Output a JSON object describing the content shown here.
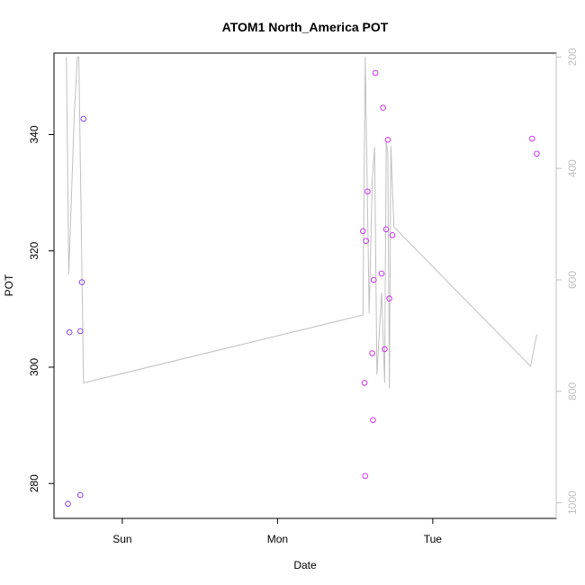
{
  "chart_data": {
    "type": "scatter",
    "title": "ATOM1 North_America POT",
    "xlabel": "Date",
    "ylabel": "POT",
    "x_ticks": [
      {
        "label": "Sun",
        "value": 1.0
      },
      {
        "label": "Mon",
        "value": 2.0
      },
      {
        "label": "Tue",
        "value": 3.0
      }
    ],
    "xlim": [
      0.56,
      3.795
    ],
    "ylim": [
      274.0,
      354.0
    ],
    "y_ticks": [
      280,
      300,
      320,
      340
    ],
    "y2lim": [
      1028.0,
      193.0
    ],
    "y2_ticks": [
      200,
      400,
      600,
      800,
      1000
    ],
    "grid": false,
    "colors": {
      "points": "#cc33ee",
      "points_left": "#8844ee",
      "line": "#c0c0c0",
      "axis": "#000000",
      "right_axis": "#c0c0c0"
    },
    "series": [
      {
        "kind": "points",
        "points": [
          [
            0.65,
            276.5
          ],
          [
            0.66,
            306.0
          ],
          [
            0.73,
            278.0
          ],
          [
            0.73,
            306.2
          ],
          [
            0.74,
            314.6
          ],
          [
            0.75,
            342.7
          ],
          [
            2.55,
            323.4
          ],
          [
            2.56,
            297.3
          ],
          [
            2.565,
            281.3
          ],
          [
            2.57,
            321.7
          ],
          [
            2.58,
            330.2
          ],
          [
            2.61,
            302.4
          ],
          [
            2.615,
            290.9
          ],
          [
            2.62,
            315.0
          ],
          [
            2.63,
            350.6
          ],
          [
            2.67,
            316.1
          ],
          [
            2.68,
            344.6
          ],
          [
            2.69,
            303.1
          ],
          [
            2.7,
            323.7
          ],
          [
            2.71,
            339.1
          ],
          [
            2.72,
            311.8
          ],
          [
            2.74,
            322.7
          ],
          [
            3.64,
            339.3
          ],
          [
            3.67,
            336.7
          ]
        ]
      },
      {
        "kind": "line",
        "points": [
          [
            0.64,
            200
          ],
          [
            0.655,
            590
          ],
          [
            0.69,
            310
          ],
          [
            0.71,
            200
          ],
          [
            0.72,
            200
          ],
          [
            0.75,
            785
          ],
          [
            2.55,
            663
          ],
          [
            2.565,
            200
          ],
          [
            2.59,
            660
          ],
          [
            2.61,
            420
          ],
          [
            2.625,
            362
          ],
          [
            2.64,
            770
          ],
          [
            2.67,
            623
          ],
          [
            2.69,
            785
          ],
          [
            2.7,
            350
          ],
          [
            2.71,
            372
          ],
          [
            2.72,
            795
          ],
          [
            2.73,
            360
          ],
          [
            2.75,
            505
          ],
          [
            3.63,
            755
          ],
          [
            3.67,
            698
          ]
        ]
      }
    ]
  }
}
